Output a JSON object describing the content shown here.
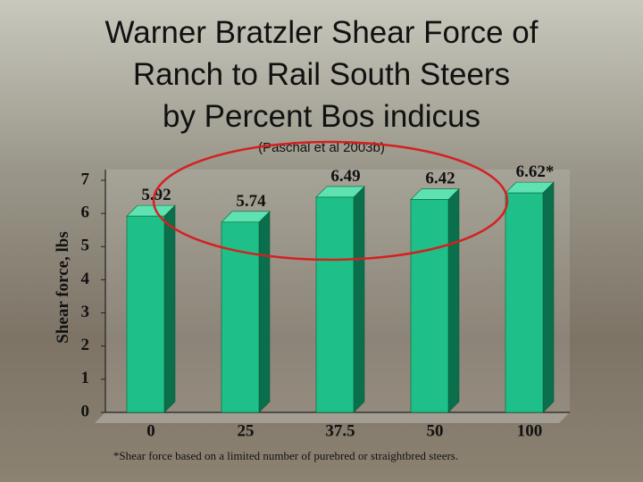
{
  "chart_data": {
    "type": "bar3d",
    "title": [
      "Warner Bratzler Shear Force of",
      "Ranch to Rail South Steers",
      "by Percent Bos indicus"
    ],
    "subtitle": "(Paschal et al 2003b)",
    "y_label": "Shear force, lbs",
    "categories": [
      "0",
      "25",
      "37.5",
      "50",
      "100"
    ],
    "values": [
      5.92,
      5.74,
      6.49,
      6.42,
      6.62
    ],
    "value_labels": [
      "5.92",
      "5.74",
      "6.49",
      "6.42",
      "6.62*"
    ],
    "color": "#1fbf8a",
    "ylim": [
      0,
      7
    ],
    "yticks": [
      0,
      1,
      2,
      3,
      4,
      5,
      6,
      7
    ],
    "grid": false,
    "footnote": "*Shear force based on a limited number of purebred or straightbred steers."
  }
}
